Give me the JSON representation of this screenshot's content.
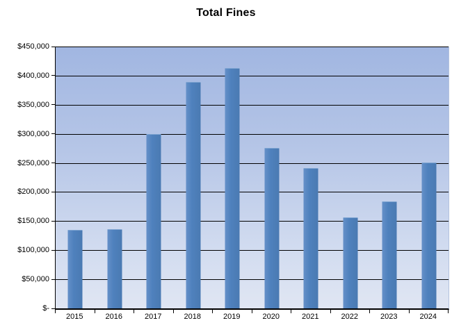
{
  "title": "Total Fines",
  "colors": {
    "bar": "#4f81bd",
    "bar_highlight": "#6590c8",
    "plot_bg_top": "#a1b6e1",
    "plot_bg_bottom": "#e0e6f3",
    "gridline": "#000000",
    "axis": "#000000",
    "text": "#000000",
    "page_bg": "#ffffff"
  },
  "chart_data": {
    "type": "bar",
    "title": "Total Fines",
    "categories": [
      "2015",
      "2016",
      "2017",
      "2018",
      "2019",
      "2020",
      "2021",
      "2022",
      "2023",
      "2024"
    ],
    "values": [
      134000,
      135000,
      298000,
      388000,
      412000,
      275000,
      240000,
      155000,
      183000,
      250000
    ],
    "xlabel": "",
    "ylabel": "",
    "ylim": [
      0,
      450000
    ],
    "ytick_interval": 50000,
    "ytick_labels": [
      "$-",
      "$50,000",
      "$100,000",
      "$150,000",
      "$200,000",
      "$250,000",
      "$300,000",
      "$350,000",
      "$400,000",
      "$450,000"
    ],
    "grid": true,
    "legend": false,
    "currency_format": "accounting"
  }
}
